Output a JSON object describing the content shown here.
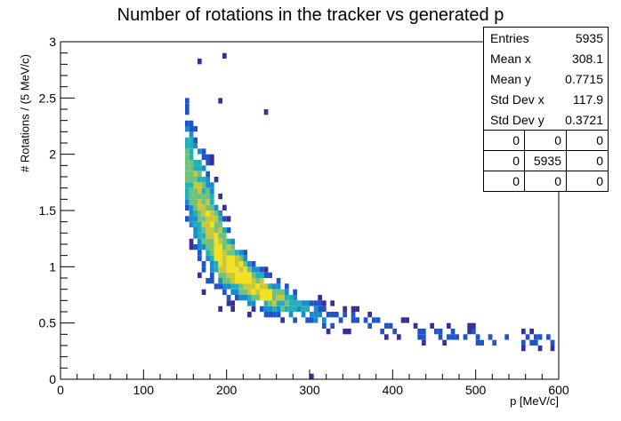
{
  "chart_data": {
    "type": "heatmap",
    "title": "Number of rotations in the tracker vs generated p",
    "xlabel": "p [MeV/c]",
    "ylabel": "# Rotations / (5 MeV/c)",
    "xlim": [
      0,
      600
    ],
    "ylim": [
      0,
      3
    ],
    "x_ticks": [
      "0",
      "100",
      "200",
      "300",
      "400",
      "500",
      "600"
    ],
    "y_ticks": [
      "0",
      "0.5",
      "1",
      "1.5",
      "2",
      "2.5",
      "3"
    ],
    "grid": false,
    "bins": {
      "nx": 120,
      "ny": 60
    },
    "description_band": "dense band following rotations ≈ k/p, from p≈150 MeV/c (≈1.5–2.3) down to p=600 MeV/c (≈0.35); maximum near p≈210, rotations≈0.95",
    "band_points": [
      {
        "p": 150,
        "rot_center": 1.95,
        "rot_spread": 0.35
      },
      {
        "p": 175,
        "rot_center": 1.45,
        "rot_spread": 0.3
      },
      {
        "p": 200,
        "rot_center": 1.05,
        "rot_spread": 0.18
      },
      {
        "p": 225,
        "rot_center": 0.88,
        "rot_spread": 0.12
      },
      {
        "p": 250,
        "rot_center": 0.75,
        "rot_spread": 0.1
      },
      {
        "p": 300,
        "rot_center": 0.6,
        "rot_spread": 0.08
      },
      {
        "p": 350,
        "rot_center": 0.52,
        "rot_spread": 0.07
      },
      {
        "p": 400,
        "rot_center": 0.45,
        "rot_spread": 0.06
      },
      {
        "p": 450,
        "rot_center": 0.41,
        "rot_spread": 0.05
      },
      {
        "p": 500,
        "rot_center": 0.38,
        "rot_spread": 0.05
      },
      {
        "p": 550,
        "rot_center": 0.36,
        "rot_spread": 0.05
      },
      {
        "p": 600,
        "rot_center": 0.34,
        "rot_spread": 0.05
      }
    ],
    "palette": [
      "#3b2e9a",
      "#1f55c8",
      "#1a8bd0",
      "#21b0b8",
      "#6ec27a",
      "#c9c63a",
      "#f2e21c"
    ],
    "stats": [
      {
        "label": "Entries",
        "value": "5935"
      },
      {
        "label": "Mean x",
        "value": "308.1"
      },
      {
        "label": "Mean y",
        "value": "0.7715"
      },
      {
        "label": "Std Dev x",
        "value": "117.9"
      },
      {
        "label": "Std Dev y",
        "value": "0.3721"
      }
    ],
    "overflow_table": [
      [
        "0",
        "0",
        "0"
      ],
      [
        "0",
        "5935",
        "0"
      ],
      [
        "0",
        "0",
        "0"
      ]
    ]
  }
}
